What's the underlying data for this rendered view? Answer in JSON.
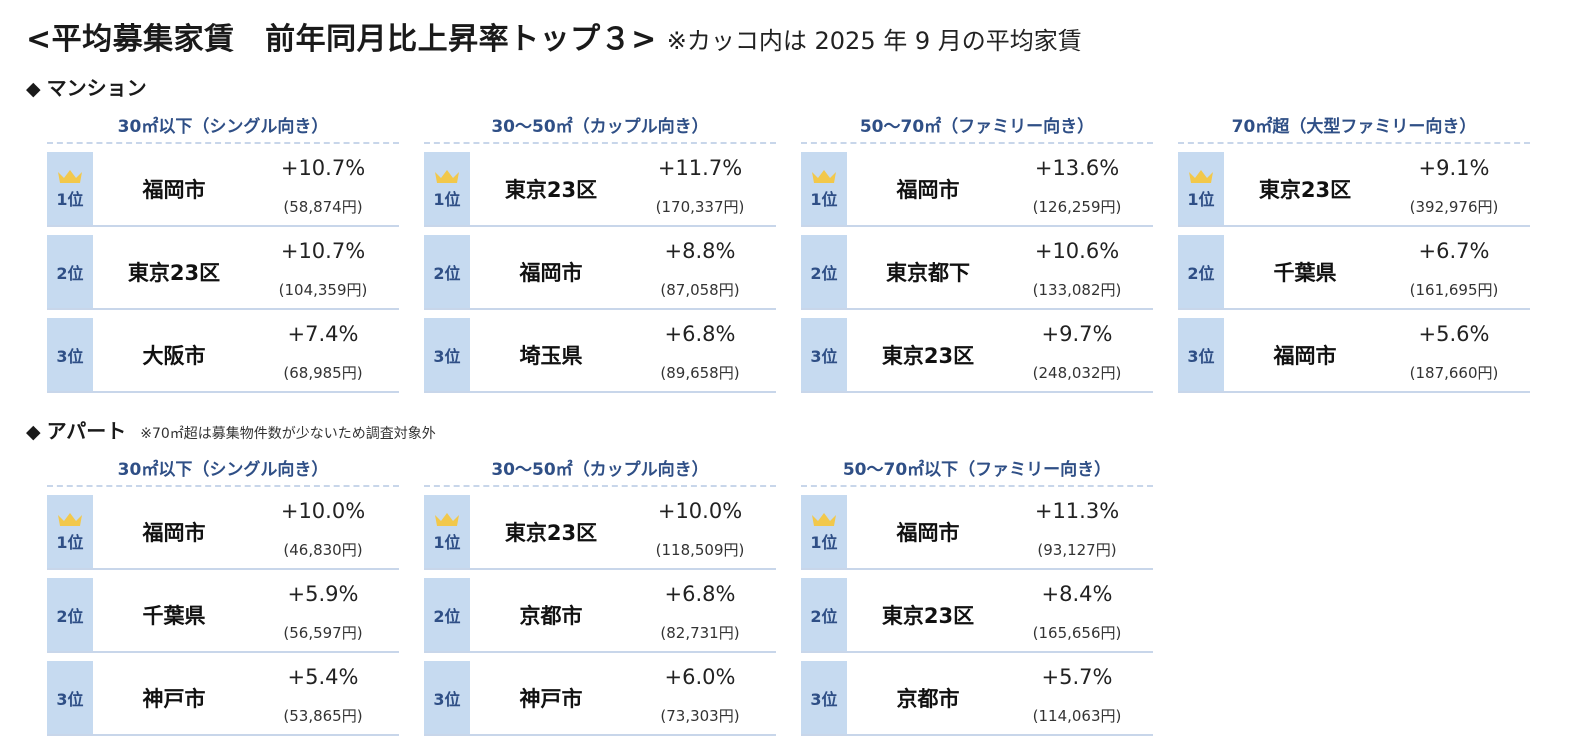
{
  "title": {
    "main": "<平均募集家賃　前年同月比上昇率トップ３>",
    "note": "※カッコ内は 2025 年 9 月の平均家賃"
  },
  "colors": {
    "accent_text": "#2f4f86",
    "rank_bg": "#c6daf0",
    "divider": "#c8d6ea",
    "crown": "#f2c84b"
  },
  "mansion": {
    "label": "マンション",
    "groups": [
      {
        "header": "30㎡以下（シングル向き）",
        "rows": [
          {
            "rank": "1位",
            "city": "福岡市",
            "rate": "+10.7%",
            "price": "(58,874円)"
          },
          {
            "rank": "2位",
            "city": "東京23区",
            "rate": "+10.7%",
            "price": "(104,359円)"
          },
          {
            "rank": "3位",
            "city": "大阪市",
            "rate": "+7.4%",
            "price": "(68,985円)"
          }
        ]
      },
      {
        "header": "30～50㎡（カップル向き）",
        "rows": [
          {
            "rank": "1位",
            "city": "東京23区",
            "rate": "+11.7%",
            "price": "(170,337円)"
          },
          {
            "rank": "2位",
            "city": "福岡市",
            "rate": "+8.8%",
            "price": "(87,058円)"
          },
          {
            "rank": "3位",
            "city": "埼玉県",
            "rate": "+6.8%",
            "price": "(89,658円)"
          }
        ]
      },
      {
        "header": "50～70㎡（ファミリー向き）",
        "rows": [
          {
            "rank": "1位",
            "city": "福岡市",
            "rate": "+13.6%",
            "price": "(126,259円)"
          },
          {
            "rank": "2位",
            "city": "東京都下",
            "rate": "+10.6%",
            "price": "(133,082円)"
          },
          {
            "rank": "3位",
            "city": "東京23区",
            "rate": "+9.7%",
            "price": "(248,032円)"
          }
        ]
      },
      {
        "header": "70㎡超（大型ファミリー向き）",
        "rows": [
          {
            "rank": "1位",
            "city": "東京23区",
            "rate": "+9.1%",
            "price": "(392,976円)"
          },
          {
            "rank": "2位",
            "city": "千葉県",
            "rate": "+6.7%",
            "price": "(161,695円)"
          },
          {
            "rank": "3位",
            "city": "福岡市",
            "rate": "+5.6%",
            "price": "(187,660円)"
          }
        ]
      }
    ]
  },
  "apart": {
    "label": "アパート",
    "note": "※70㎡超は募集物件数が少ないため調査対象外",
    "groups": [
      {
        "header": "30㎡以下（シングル向き）",
        "rows": [
          {
            "rank": "1位",
            "city": "福岡市",
            "rate": "+10.0%",
            "price": "(46,830円)"
          },
          {
            "rank": "2位",
            "city": "千葉県",
            "rate": "+5.9%",
            "price": "(56,597円)"
          },
          {
            "rank": "3位",
            "city": "神戸市",
            "rate": "+5.4%",
            "price": "(53,865円)"
          }
        ]
      },
      {
        "header": "30～50㎡（カップル向き）",
        "rows": [
          {
            "rank": "1位",
            "city": "東京23区",
            "rate": "+10.0%",
            "price": "(118,509円)"
          },
          {
            "rank": "2位",
            "city": "京都市",
            "rate": "+6.8%",
            "price": "(82,731円)"
          },
          {
            "rank": "3位",
            "city": "神戸市",
            "rate": "+6.0%",
            "price": "(73,303円)"
          }
        ]
      },
      {
        "header": "50～70㎡以下（ファミリー向き）",
        "rows": [
          {
            "rank": "1位",
            "city": "福岡市",
            "rate": "+11.3%",
            "price": "(93,127円)"
          },
          {
            "rank": "2位",
            "city": "東京23区",
            "rate": "+8.4%",
            "price": "(165,656円)"
          },
          {
            "rank": "3位",
            "city": "京都市",
            "rate": "+5.7%",
            "price": "(114,063円)"
          }
        ]
      }
    ]
  }
}
